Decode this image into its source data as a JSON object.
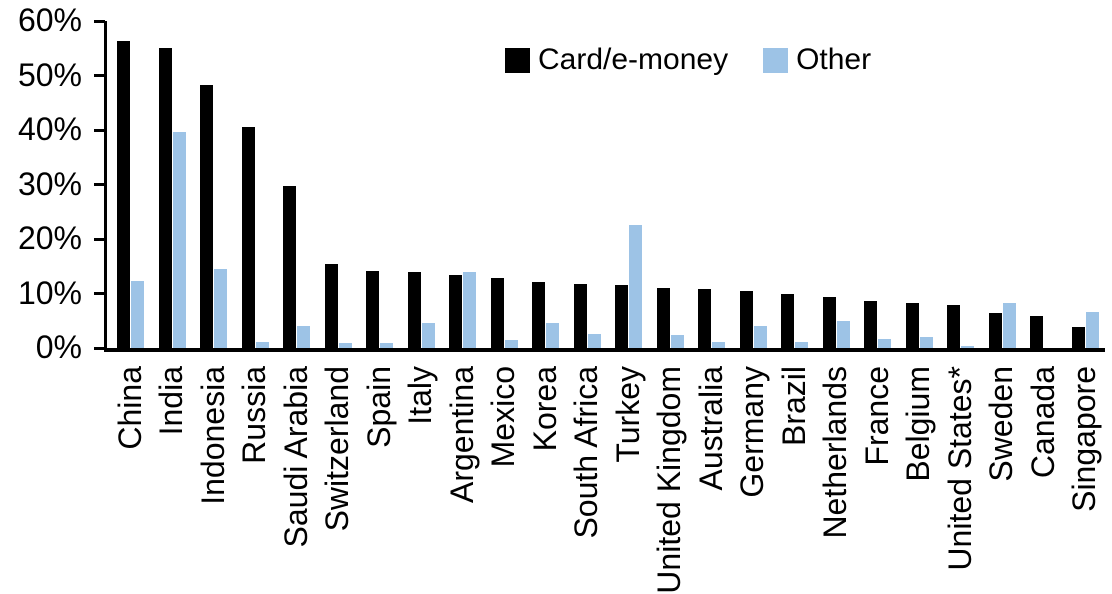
{
  "chart_data": {
    "type": "bar",
    "title": "",
    "xlabel": "",
    "ylabel": "",
    "ylim": [
      0,
      60
    ],
    "ytick_step": 10,
    "y_ticks": [
      "0%",
      "10%",
      "20%",
      "30%",
      "40%",
      "50%",
      "60%"
    ],
    "grid": false,
    "legend_position": "top-center",
    "x_label_rotation": -90,
    "categories": [
      "China",
      "India",
      "Indonesia",
      "Russia",
      "Saudi Arabia",
      "Switzerland",
      "Spain",
      "Italy",
      "Argentina",
      "Mexico",
      "Korea",
      "South Africa",
      "Turkey",
      "United Kingdom",
      "Australia",
      "Germany",
      "Brazil",
      "Netherlands",
      "France",
      "Belgium",
      "United States*",
      "Sweden",
      "Canada",
      "Singapore"
    ],
    "series": [
      {
        "name": "Card/e-money",
        "color": "#000000",
        "values": [
          56.3,
          55.0,
          48.3,
          40.5,
          29.8,
          15.5,
          14.1,
          14.0,
          13.4,
          12.9,
          12.2,
          11.7,
          11.5,
          11.0,
          10.8,
          10.5,
          10.0,
          9.3,
          8.7,
          8.2,
          7.9,
          6.5,
          5.9,
          3.9
        ]
      },
      {
        "name": "Other",
        "color": "#9DC3E6",
        "values": [
          12.3,
          39.7,
          14.5,
          1.1,
          4.0,
          0.9,
          1.0,
          4.6,
          13.9,
          1.4,
          4.6,
          2.5,
          22.6,
          2.4,
          1.1,
          4.0,
          1.2,
          5.0,
          1.7,
          2.1,
          0.3,
          8.2,
          0.0,
          6.7
        ]
      }
    ]
  }
}
